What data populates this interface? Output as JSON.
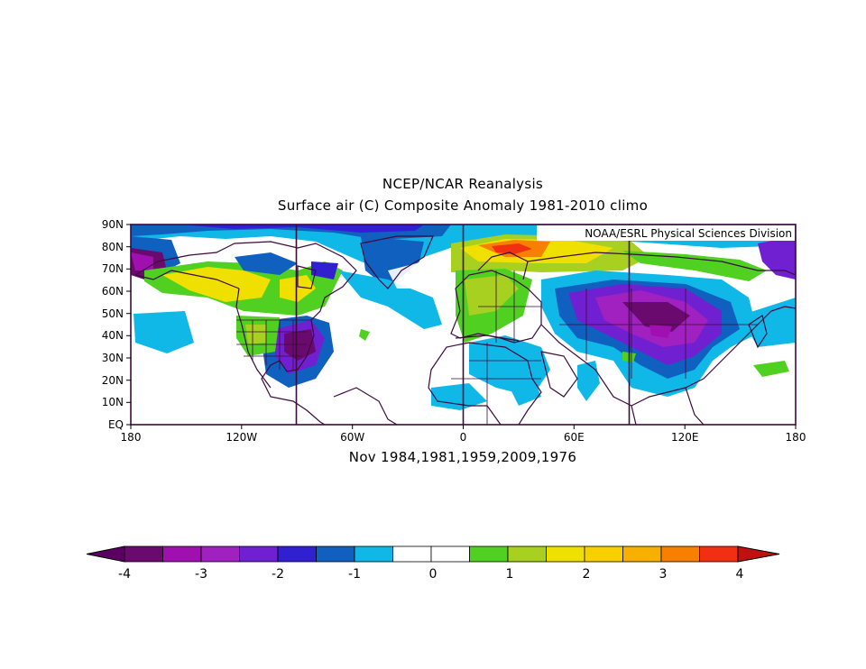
{
  "title_line1": "NCEP/NCAR Reanalysis",
  "title_line2": "Surface air (C) Composite Anomaly 1981-2010 climo",
  "credit": "NOAA/ESRL Physical Sciences Division",
  "subtitle": "Nov 1984,1981,1959,2009,1976",
  "lat_labels": [
    "90N",
    "80N",
    "70N",
    "60N",
    "50N",
    "40N",
    "30N",
    "20N",
    "10N",
    "EQ"
  ],
  "lon_labels": [
    "180",
    "120W",
    "60W",
    "0",
    "60E",
    "120E",
    "180"
  ],
  "colorbar": {
    "labels": [
      "-4",
      "-3",
      "-2",
      "-1",
      "0",
      "1",
      "2",
      "3",
      "4"
    ],
    "colors": [
      "#6a0a6e",
      "#a010b0",
      "#a020c0",
      "#7020d0",
      "#3020d0",
      "#1060c0",
      "#10b8e8",
      "#ffffff",
      "#ffffff",
      "#50d020",
      "#a8d020",
      "#f0e000",
      "#f8d000",
      "#f8b000",
      "#f88000",
      "#f03010"
    ],
    "under_color": "#5a0060",
    "over_color": "#c01010"
  },
  "colors": {
    "coast": "#3c0a3c",
    "frame": "#3c0a3c",
    "meridian": "#3c0a3c"
  }
}
